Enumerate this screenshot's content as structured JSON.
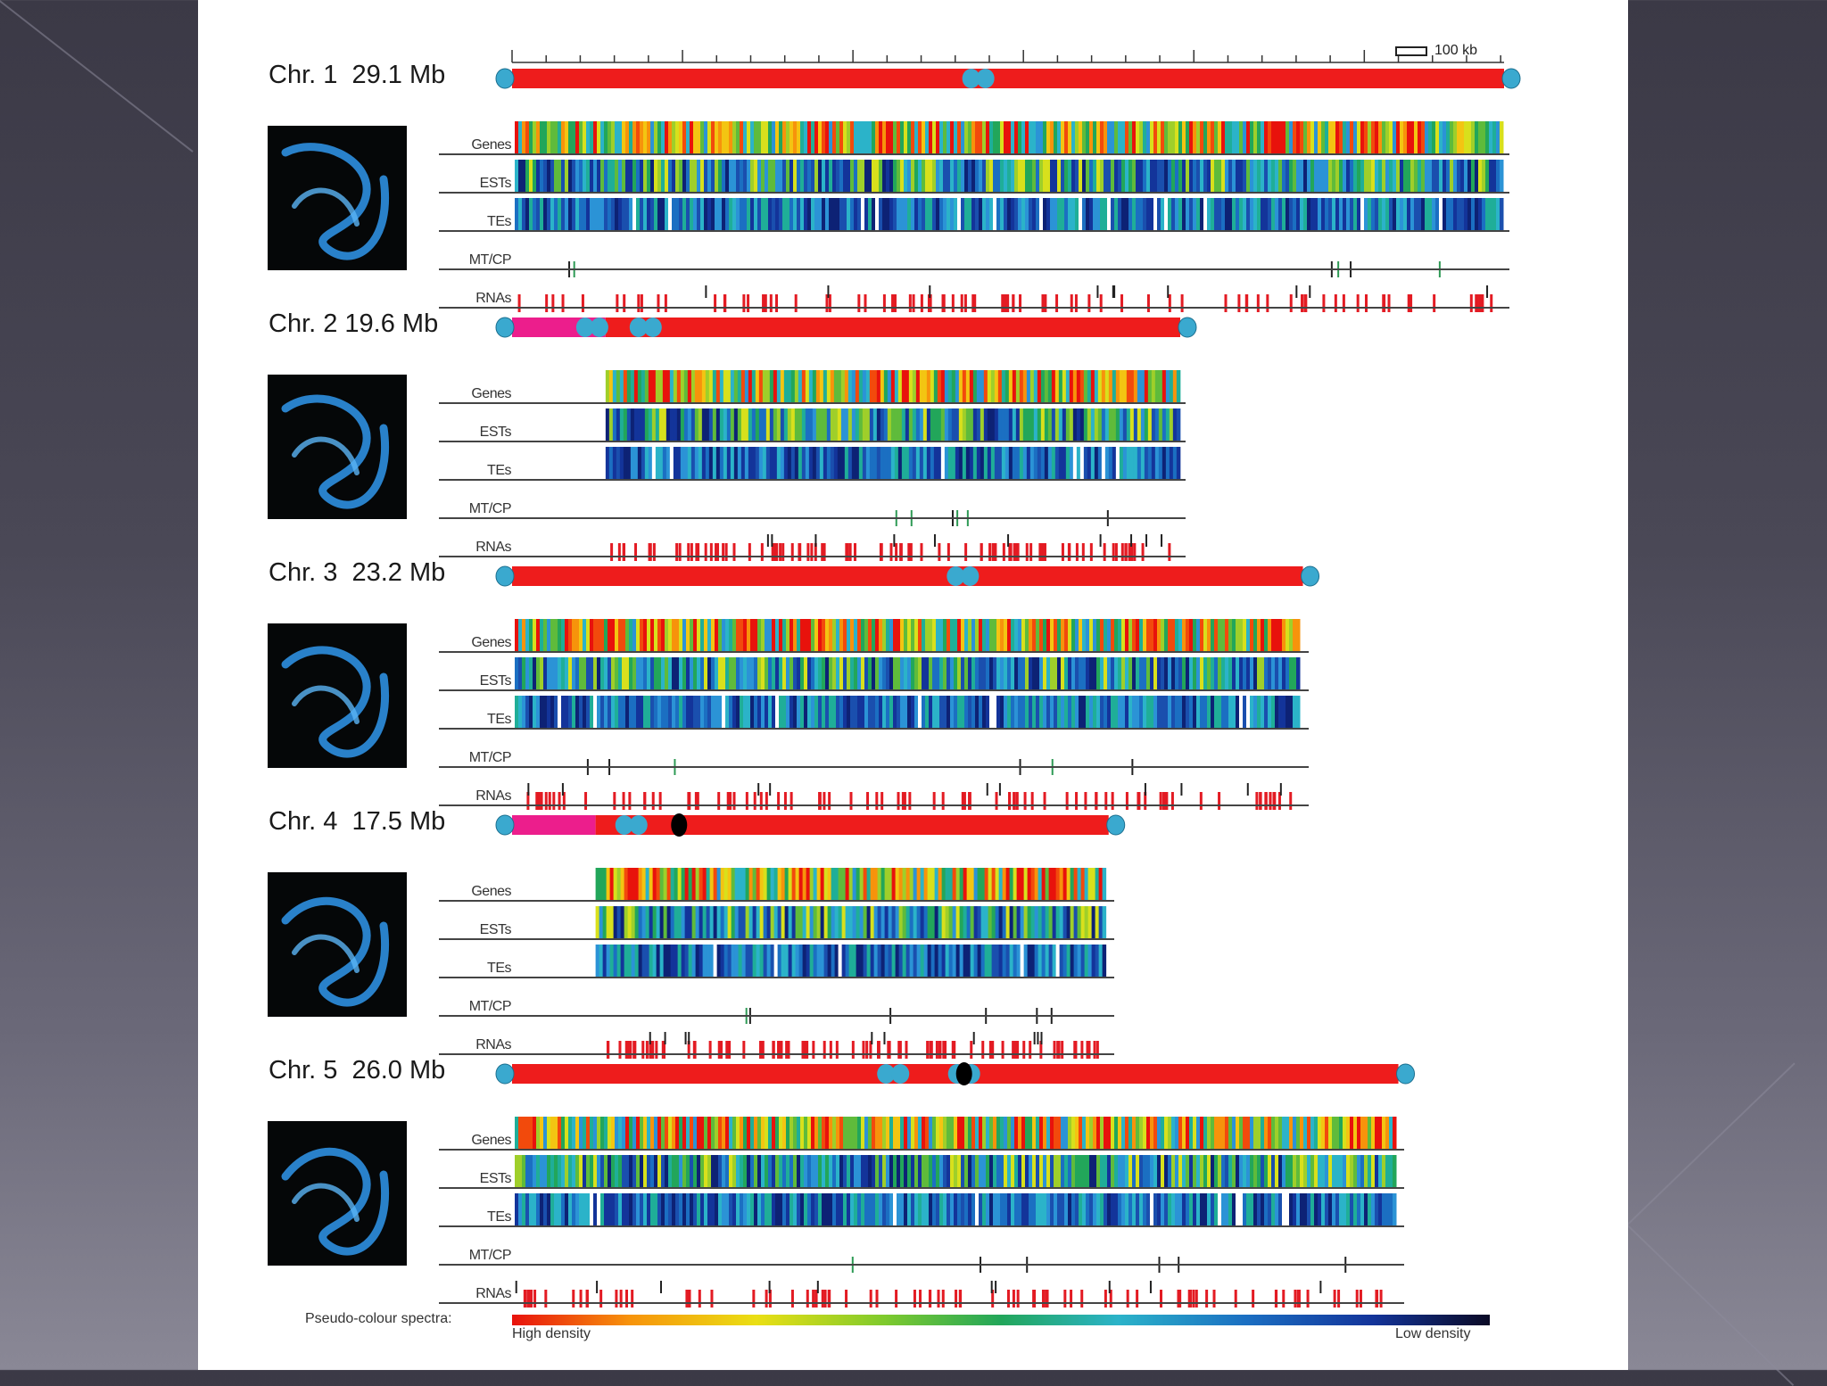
{
  "scale_label": "100 kb",
  "spectra": {
    "title": "Pseudo-colour spectra:",
    "high": "High density",
    "low": "Low density"
  },
  "track_names": [
    "Genes",
    "ESTs",
    "TEs",
    "MT/CP",
    "RNAs"
  ],
  "chromosomes": [
    {
      "title": "Chr. 1  29.1 Mb",
      "size_mb": 29.1
    },
    {
      "title": "Chr. 2 19.6 Mb",
      "size_mb": 19.6
    },
    {
      "title": "Chr. 3  23.2 Mb",
      "size_mb": 23.2
    },
    {
      "title": "Chr. 4  17.5 Mb",
      "size_mb": 17.5
    },
    {
      "title": "Chr. 5  26.0 Mb",
      "size_mb": 26.0
    }
  ],
  "colors": {
    "chromosome_body": "#ee1c1c",
    "heterochromatin": "#ec1e8c",
    "telomere": "#3aa9cf",
    "centromere_knob": "#000000",
    "photo_dna": "#2e8fe0",
    "rna_mark": "#e31b23",
    "mtcp_mark": "#2e9a55"
  }
}
